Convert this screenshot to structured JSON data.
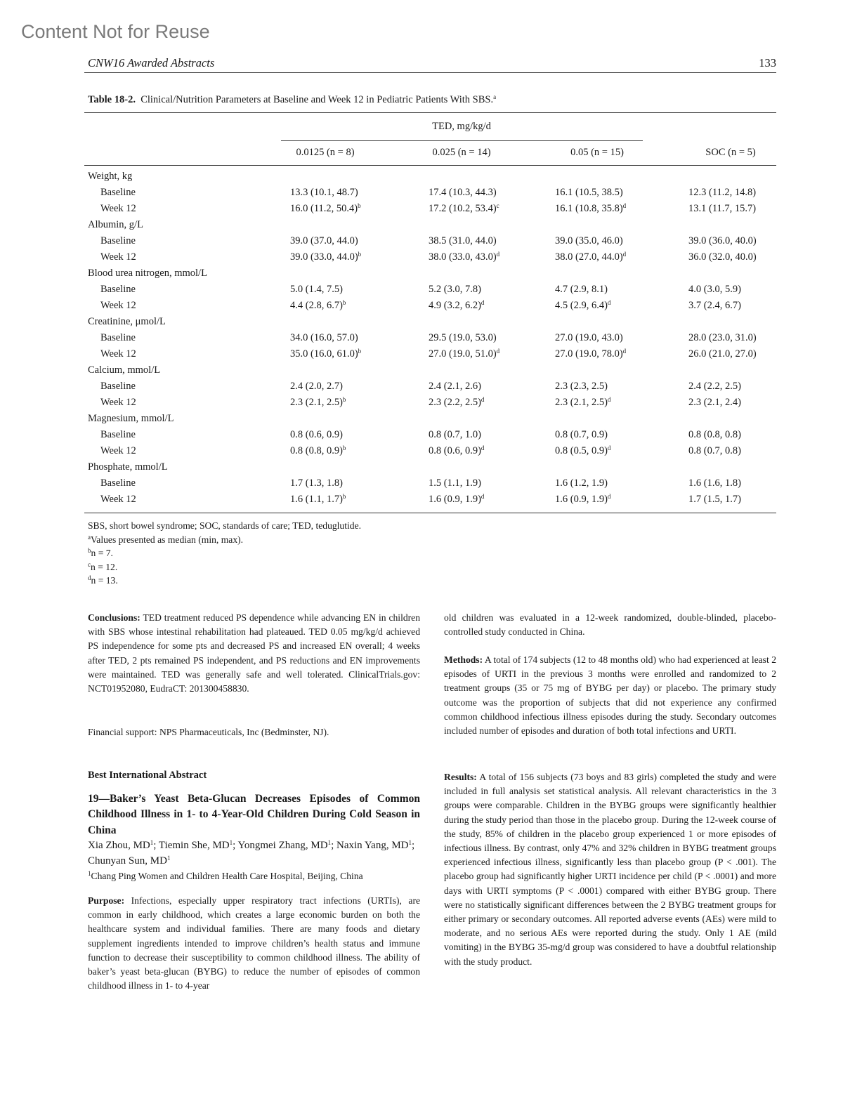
{
  "watermark": "Content Not for Reuse",
  "running_head": "CNW16 Awarded Abstracts",
  "page_number": "133",
  "table": {
    "caption_label": "Table 18-2.",
    "caption_text": "Clinical/Nutrition Parameters at Baseline and Week 12 in Pediatric Patients With SBS.",
    "caption_sup": "a",
    "spanner": "TED, mg/kg/d",
    "columns": [
      "0.0125 (n = 8)",
      "0.025 (n = 14)",
      "0.05 (n = 15)",
      "SOC (n = 5)"
    ],
    "groups": [
      {
        "label": "Weight, kg",
        "rows": [
          {
            "label": "Baseline",
            "cells": [
              {
                "v": "13.3 (10.1, 48.7)",
                "s": ""
              },
              {
                "v": "17.4 (10.3, 44.3)",
                "s": ""
              },
              {
                "v": "16.1 (10.5, 38.5)",
                "s": ""
              },
              {
                "v": "12.3 (11.2, 14.8)",
                "s": ""
              }
            ]
          },
          {
            "label": "Week 12",
            "cells": [
              {
                "v": "16.0 (11.2, 50.4)",
                "s": "b"
              },
              {
                "v": "17.2 (10.2, 53.4)",
                "s": "c"
              },
              {
                "v": "16.1 (10.8, 35.8)",
                "s": "d"
              },
              {
                "v": "13.1 (11.7, 15.7)",
                "s": ""
              }
            ]
          }
        ]
      },
      {
        "label": "Albumin, g/L",
        "rows": [
          {
            "label": "Baseline",
            "cells": [
              {
                "v": "39.0 (37.0, 44.0)",
                "s": ""
              },
              {
                "v": "38.5 (31.0, 44.0)",
                "s": ""
              },
              {
                "v": "39.0 (35.0, 46.0)",
                "s": ""
              },
              {
                "v": "39.0 (36.0, 40.0)",
                "s": ""
              }
            ]
          },
          {
            "label": "Week 12",
            "cells": [
              {
                "v": "39.0 (33.0, 44.0)",
                "s": "b"
              },
              {
                "v": "38.0 (33.0, 43.0)",
                "s": "d"
              },
              {
                "v": "38.0 (27.0, 44.0)",
                "s": "d"
              },
              {
                "v": "36.0 (32.0, 40.0)",
                "s": ""
              }
            ]
          }
        ]
      },
      {
        "label": "Blood urea nitrogen, mmol/L",
        "rows": [
          {
            "label": "Baseline",
            "cells": [
              {
                "v": "5.0 (1.4, 7.5)",
                "s": ""
              },
              {
                "v": "5.2 (3.0, 7.8)",
                "s": ""
              },
              {
                "v": "4.7 (2.9, 8.1)",
                "s": ""
              },
              {
                "v": "4.0 (3.0, 5.9)",
                "s": ""
              }
            ]
          },
          {
            "label": "Week 12",
            "cells": [
              {
                "v": "4.4 (2.8, 6.7)",
                "s": "b"
              },
              {
                "v": "4.9 (3.2, 6.2)",
                "s": "d"
              },
              {
                "v": "4.5 (2.9, 6.4)",
                "s": "d"
              },
              {
                "v": "3.7 (2.4, 6.7)",
                "s": ""
              }
            ]
          }
        ]
      },
      {
        "label": "Creatinine, μmol/L",
        "rows": [
          {
            "label": "Baseline",
            "cells": [
              {
                "v": "34.0 (16.0, 57.0)",
                "s": ""
              },
              {
                "v": "29.5 (19.0, 53.0)",
                "s": ""
              },
              {
                "v": "27.0 (19.0, 43.0)",
                "s": ""
              },
              {
                "v": "28.0 (23.0, 31.0)",
                "s": ""
              }
            ]
          },
          {
            "label": "Week 12",
            "cells": [
              {
                "v": "35.0 (16.0, 61.0)",
                "s": "b"
              },
              {
                "v": "27.0 (19.0, 51.0)",
                "s": "d"
              },
              {
                "v": "27.0 (19.0, 78.0)",
                "s": "d"
              },
              {
                "v": "26.0 (21.0, 27.0)",
                "s": ""
              }
            ]
          }
        ]
      },
      {
        "label": "Calcium, mmol/L",
        "rows": [
          {
            "label": "Baseline",
            "cells": [
              {
                "v": "2.4 (2.0, 2.7)",
                "s": ""
              },
              {
                "v": "2.4 (2.1, 2.6)",
                "s": ""
              },
              {
                "v": "2.3 (2.3, 2.5)",
                "s": ""
              },
              {
                "v": "2.4 (2.2, 2.5)",
                "s": ""
              }
            ]
          },
          {
            "label": "Week 12",
            "cells": [
              {
                "v": "2.3 (2.1, 2.5)",
                "s": "b"
              },
              {
                "v": "2.3 (2.2, 2.5)",
                "s": "d"
              },
              {
                "v": "2.3 (2.1, 2.5)",
                "s": "d"
              },
              {
                "v": "2.3 (2.1, 2.4)",
                "s": ""
              }
            ]
          }
        ]
      },
      {
        "label": "Magnesium, mmol/L",
        "rows": [
          {
            "label": "Baseline",
            "cells": [
              {
                "v": "0.8 (0.6, 0.9)",
                "s": ""
              },
              {
                "v": "0.8 (0.7, 1.0)",
                "s": ""
              },
              {
                "v": "0.8 (0.7, 0.9)",
                "s": ""
              },
              {
                "v": "0.8 (0.8, 0.8)",
                "s": ""
              }
            ]
          },
          {
            "label": "Week 12",
            "cells": [
              {
                "v": "0.8 (0.8, 0.9)",
                "s": "b"
              },
              {
                "v": "0.8 (0.6, 0.9)",
                "s": "d"
              },
              {
                "v": "0.8 (0.5, 0.9)",
                "s": "d"
              },
              {
                "v": "0.8 (0.7, 0.8)",
                "s": ""
              }
            ]
          }
        ]
      },
      {
        "label": "Phosphate, mmol/L",
        "rows": [
          {
            "label": "Baseline",
            "cells": [
              {
                "v": "1.7 (1.3, 1.8)",
                "s": ""
              },
              {
                "v": "1.5 (1.1, 1.9)",
                "s": ""
              },
              {
                "v": "1.6 (1.2, 1.9)",
                "s": ""
              },
              {
                "v": "1.6 (1.6, 1.8)",
                "s": ""
              }
            ]
          },
          {
            "label": "Week 12",
            "cells": [
              {
                "v": "1.6 (1.1, 1.7)",
                "s": "b"
              },
              {
                "v": "1.6 (0.9, 1.9)",
                "s": "d"
              },
              {
                "v": "1.6 (0.9, 1.9)",
                "s": "d"
              },
              {
                "v": "1.7 (1.5, 1.7)",
                "s": ""
              }
            ]
          }
        ]
      }
    ],
    "footnotes": [
      {
        "sup": "",
        "text": "SBS, short bowel syndrome; SOC, standards of care; TED, teduglutide."
      },
      {
        "sup": "a",
        "text": "Values presented as median (min, max)."
      },
      {
        "sup": "b",
        "text": "n = 7."
      },
      {
        "sup": "c",
        "text": "n = 12."
      },
      {
        "sup": "d",
        "text": "n = 13."
      }
    ]
  },
  "left_column": {
    "conclusions_label": "Conclusions:",
    "conclusions_text": " TED treatment reduced PS dependence while advancing EN in children with SBS whose intestinal rehabilitation had plateaued. TED 0.05 mg/kg/d achieved PS independence for some pts and decreased PS and increased EN overall; 4 weeks after TED, 2 pts remained PS independent, and PS reductions and EN improvements were maintained. TED was generally safe and well tolerated. ClinicalTrials.gov: NCT01952080, EudraCT: 201300458830.",
    "financial_support": "Financial support: NPS Pharmaceuticals, Inc (Bedminster, NJ).",
    "section_heading": "Best International Abstract",
    "abstract_title": "19—Baker’s Yeast Beta-Glucan Decreases Episodes of Common Childhood Illness in 1- to 4-Year-Old Children During Cold Season in China",
    "authors": [
      {
        "name": "Xia Zhou, MD",
        "sup": "1",
        "sep": "; "
      },
      {
        "name": "Tiemin She, MD",
        "sup": "1",
        "sep": "; "
      },
      {
        "name": "Yongmei Zhang, MD",
        "sup": "1",
        "sep": "; "
      },
      {
        "name": "Naxin Yang, MD",
        "sup": "1",
        "sep": "; "
      },
      {
        "name": "Chunyan Sun, MD",
        "sup": "1",
        "sep": ""
      }
    ],
    "affiliation_sup": "1",
    "affiliation": "Chang Ping Women and Children Health Care Hospital, Beijing, China",
    "purpose_label": "Purpose:",
    "purpose_text": " Infections, especially upper respiratory tract infections (URTIs), are common in early childhood, which creates a large economic burden on both the healthcare system and individual families. There are many foods and dietary supplement ingredients intended to improve children’s health status and immune function to decrease their susceptibility to common childhood illness. The ability of baker’s yeast beta-glucan (BYBG) to reduce the number of episodes of common childhood illness in 1- to 4-year"
  },
  "right_column": {
    "purpose_continued": "old children was evaluated in a 12-week randomized, double-blinded, placebo-controlled study conducted in China.",
    "methods_label": "Methods:",
    "methods_text": " A total of 174 subjects (12 to 48 months old) who had experienced at least 2 episodes of URTI in the previous 3 months were enrolled and randomized to 2 treatment groups (35 or 75 mg of BYBG per day) or placebo. The primary study outcome was the proportion of subjects that did not experience any confirmed common childhood infectious illness episodes during the study. Secondary outcomes included number of episodes and duration of both total infections and URTI.",
    "results_label": "Results:",
    "results_text": " A total of 156 subjects (73 boys and 83 girls) completed the study and were included in full analysis set statistical analysis. All relevant characteristics in the 3 groups were comparable. Children in the BYBG groups were significantly healthier during the study period than those in the placebo group. During the 12-week course of the study, 85% of children in the placebo group experienced 1 or more episodes of infectious illness. By contrast, only 47% and 32% children in BYBG treatment groups experienced infectious illness, significantly less than placebo group (P < .001). The placebo group had significantly higher URTI incidence per child (P < .0001) and more days with URTI symptoms (P < .0001) compared with either BYBG group. There were no statistically significant differences between the 2 BYBG treatment groups for either primary or secondary outcomes. All reported adverse events (AEs) were mild to moderate, and no serious AEs were reported during the study. Only 1 AE (mild vomiting) in the BYBG 35-mg/d group was considered to have a doubtful relationship with the study product."
  }
}
